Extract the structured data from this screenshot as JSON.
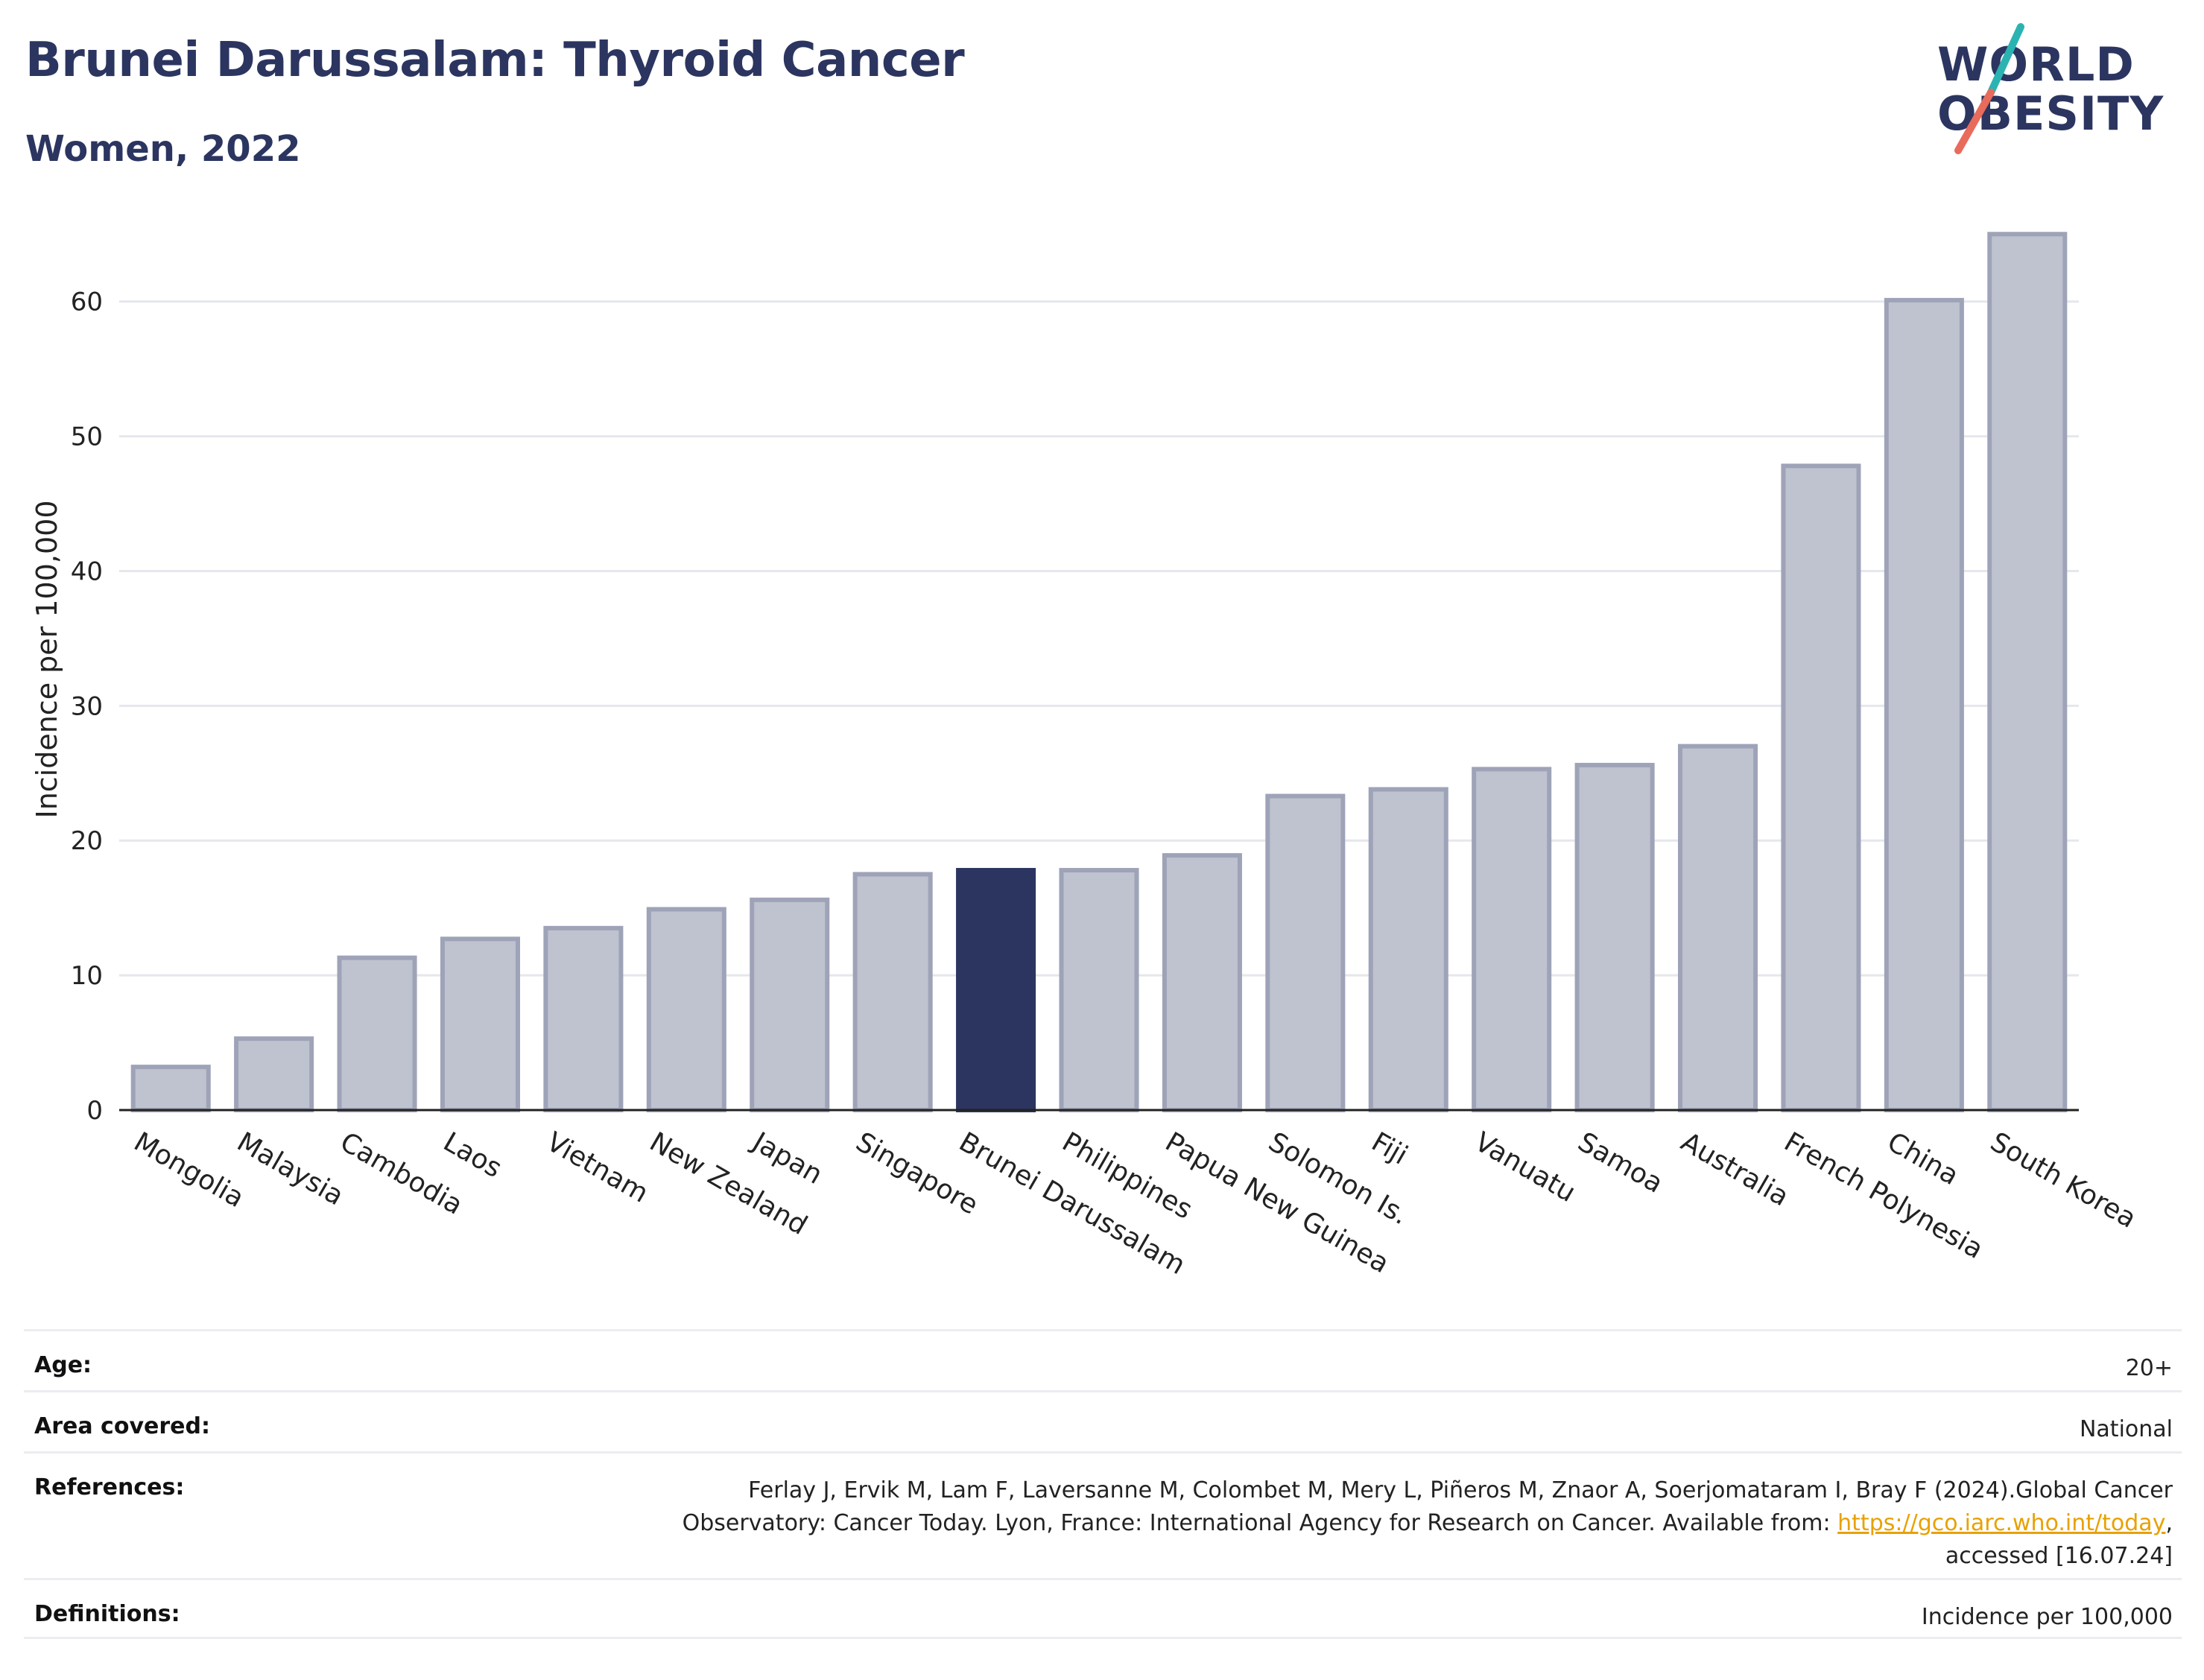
{
  "header": {
    "title": "Brunei Darussalam: Thyroid Cancer",
    "subtitle": "Women, 2022"
  },
  "logo": {
    "line1": "WORLD",
    "line2": "OBESITY"
  },
  "colors": {
    "highlight": "#2b3560",
    "bar": "#bfc2cf",
    "bar_edge": "#9ea3b8",
    "logo_slash_top": "#2bb3b1",
    "logo_slash_bottom": "#e96b5c",
    "link": "#e8a100"
  },
  "chart_data": {
    "type": "bar",
    "categories": [
      "Mongolia",
      "Malaysia",
      "Cambodia",
      "Laos",
      "Vietnam",
      "New Zealand",
      "Japan",
      "Singapore",
      "Brunei Darussalam",
      "Philippines",
      "Papua New Guinea",
      "Solomon Is.",
      "Fiji",
      "Vanuatu",
      "Samoa",
      "Australia",
      "French Polynesia",
      "China",
      "South Korea"
    ],
    "values": [
      3.2,
      5.3,
      11.3,
      12.7,
      13.5,
      14.9,
      15.6,
      17.5,
      17.8,
      17.8,
      18.9,
      23.3,
      23.8,
      25.3,
      25.6,
      27.0,
      47.8,
      60.1,
      65.0
    ],
    "highlight": "Brunei Darussalam",
    "ylabel": "Incidence per 100,000",
    "xlabel": "",
    "ylim": [
      0,
      68
    ],
    "yticks": [
      0,
      10,
      20,
      30,
      40,
      50,
      60
    ],
    "grid": true
  },
  "meta": {
    "age_label": "Age:",
    "age_value": "20+",
    "area_label": "Area covered:",
    "area_value": "National",
    "references_label": "References:",
    "references_line1": "Ferlay J, Ervik M, Lam F, Laversanne M, Colombet M, Mery L, Piñeros M, Znaor A, Soerjomataram I, Bray F (2024).Global Cancer",
    "references_line2_pre": "Observatory: Cancer Today. Lyon, France: International Agency for Research on Cancer. Available from: ",
    "references_link": "https://gco.iarc.who.int/today",
    "references_line2_post": ",",
    "references_line3": "accessed [16.07.24]",
    "definitions_label": "Definitions:",
    "definitions_value": "Incidence per 100,000"
  }
}
